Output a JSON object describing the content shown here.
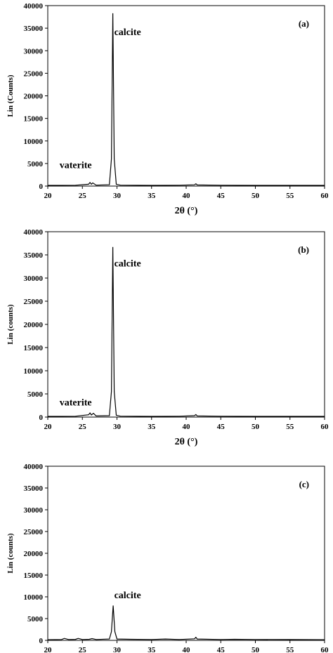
{
  "chart_data": [
    {
      "type": "line",
      "panel_label": "(a)",
      "xlabel": "2θ (°)",
      "ylabel": "Lin (Counts)",
      "xlim": [
        20,
        60
      ],
      "ylim": [
        0,
        40000
      ],
      "xticks": [
        20,
        25,
        30,
        35,
        40,
        45,
        50,
        55,
        60
      ],
      "yticks": [
        0,
        5000,
        10000,
        15000,
        20000,
        25000,
        30000,
        35000,
        40000
      ],
      "annotations": [
        {
          "text": "calcite",
          "x": 29.4,
          "y": 33500
        },
        {
          "text": "vaterite",
          "x": 21.5,
          "y": 4000
        }
      ],
      "series": [
        {
          "x": [
            20,
            24,
            25.9,
            26.1,
            26.3,
            26.5,
            27,
            28.9,
            29.2,
            29.4,
            29.6,
            29.9,
            30.5,
            35,
            39,
            41.2,
            41.4,
            41.6,
            45,
            50,
            55,
            60
          ],
          "y": [
            150,
            180,
            400,
            800,
            400,
            700,
            200,
            300,
            6000,
            38300,
            6000,
            400,
            200,
            150,
            180,
            280,
            500,
            250,
            180,
            150,
            150,
            150
          ]
        }
      ]
    },
    {
      "type": "line",
      "panel_label": "(b)",
      "xlabel": "2θ (°)",
      "ylabel": "Lin (counts)",
      "xlim": [
        20,
        60
      ],
      "ylim": [
        0,
        40000
      ],
      "xticks": [
        20,
        25,
        30,
        35,
        40,
        45,
        50,
        55,
        60
      ],
      "yticks": [
        0,
        5000,
        10000,
        15000,
        20000,
        25000,
        30000,
        35000,
        40000
      ],
      "annotations": [
        {
          "text": "calcite",
          "x": 29.4,
          "y": 32500
        },
        {
          "text": "vaterite",
          "x": 21.5,
          "y": 2500
        }
      ],
      "series": [
        {
          "x": [
            20,
            24,
            25.9,
            26.1,
            26.3,
            26.6,
            27,
            28.9,
            29.2,
            29.4,
            29.6,
            29.9,
            30.5,
            35,
            39,
            41.2,
            41.4,
            41.6,
            45,
            50,
            55,
            60
          ],
          "y": [
            150,
            180,
            500,
            900,
            450,
            800,
            250,
            300,
            5500,
            36700,
            5500,
            400,
            200,
            150,
            180,
            300,
            550,
            250,
            180,
            150,
            150,
            150
          ]
        }
      ]
    },
    {
      "type": "line",
      "panel_label": "(c)",
      "xlabel": "",
      "ylabel": "Lin (counts)",
      "xlim": [
        20,
        60
      ],
      "ylim": [
        0,
        40000
      ],
      "xticks": [
        20,
        25,
        30,
        35,
        40,
        45,
        50,
        55,
        60
      ],
      "yticks": [
        0,
        5000,
        10000,
        15000,
        20000,
        25000,
        30000,
        35000,
        40000
      ],
      "annotations": [
        {
          "text": "calcite",
          "x": 29.4,
          "y": 9700
        }
      ],
      "series": [
        {
          "x": [
            20,
            22,
            22.4,
            23,
            24,
            24.4,
            25,
            26,
            26.4,
            27,
            28.9,
            29.2,
            29.45,
            29.7,
            30,
            32,
            35,
            37,
            39,
            41.2,
            41.4,
            41.6,
            45,
            47,
            50,
            55,
            60
          ],
          "y": [
            150,
            200,
            450,
            200,
            220,
            450,
            200,
            250,
            400,
            200,
            300,
            2000,
            8000,
            2000,
            300,
            250,
            200,
            300,
            200,
            350,
            700,
            300,
            200,
            250,
            200,
            180,
            150
          ]
        }
      ]
    }
  ]
}
